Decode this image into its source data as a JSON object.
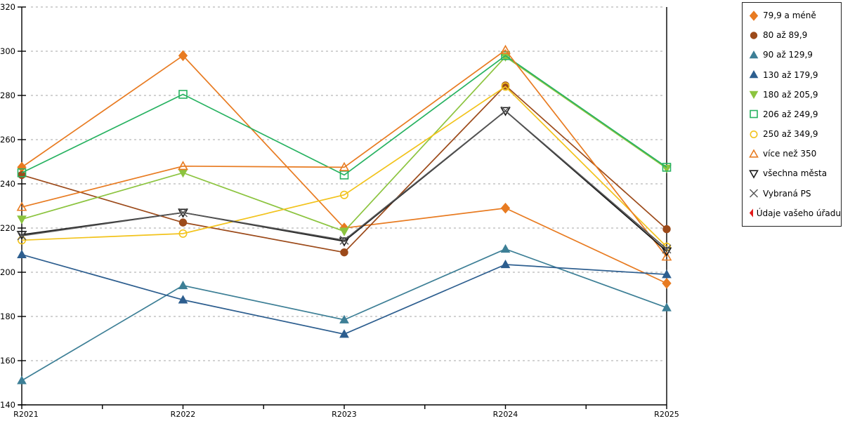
{
  "chart_data": {
    "type": "line",
    "title": "",
    "xlabel": "",
    "ylabel": "",
    "categories": [
      "R2021",
      "R2022",
      "R2023",
      "R2024",
      "R2025"
    ],
    "ylim": [
      140,
      320
    ],
    "ytick_step": 20,
    "grid": "horizontal-dashed",
    "legend_position": "right",
    "series": [
      {
        "name": "79,9 a méně",
        "color": "#e87b21",
        "marker": "diamond",
        "fill": "filled",
        "values": [
          247.5,
          298,
          220,
          229,
          195
        ]
      },
      {
        "name": "80 až 89,9",
        "color": "#9c4a1a",
        "marker": "circle",
        "fill": "filled",
        "values": [
          244,
          222.5,
          209,
          284.5,
          219.5
        ]
      },
      {
        "name": "90 až 129,9",
        "color": "#3d7f96",
        "marker": "triangle-up",
        "fill": "filled",
        "values": [
          151,
          194,
          178.5,
          210.5,
          184
        ]
      },
      {
        "name": "130 až 179,9",
        "color": "#2d5e8f",
        "marker": "triangle-up",
        "fill": "filled",
        "values": [
          208,
          187.5,
          172,
          203.5,
          199
        ]
      },
      {
        "name": "180 až 205,9",
        "color": "#8cc43f",
        "marker": "triangle-down",
        "fill": "filled",
        "values": [
          224,
          245,
          218.5,
          297.5,
          247
        ]
      },
      {
        "name": "206 až 249,9",
        "color": "#27b261",
        "marker": "square",
        "fill": "open",
        "values": [
          245,
          280.5,
          244,
          298,
          247.5
        ]
      },
      {
        "name": "250 až 349,9",
        "color": "#f2c31c",
        "marker": "circle",
        "fill": "open",
        "values": [
          214.5,
          217.5,
          235,
          284,
          211.5
        ]
      },
      {
        "name": "více než 350",
        "color": "#e87b21",
        "marker": "triangle-up",
        "fill": "open",
        "values": [
          229.5,
          248,
          247.5,
          300.5,
          207
        ]
      },
      {
        "name": "všechna města",
        "color": "#1a1a1a",
        "marker": "triangle-down",
        "fill": "open",
        "values": [
          217,
          227,
          214,
          273,
          209.5
        ]
      },
      {
        "name": "Vybraná PS",
        "color": "#555555",
        "marker": "x",
        "fill": "open",
        "values": [
          216.5,
          227,
          214.5,
          273,
          210.5
        ]
      },
      {
        "name": "Údaje vašeho úřadu",
        "color": "#e31a1a",
        "marker": "diamond",
        "fill": "filled",
        "values": [
          null,
          null,
          null,
          null,
          null
        ]
      }
    ],
    "colors": {
      "grid": "#b8b8b8",
      "axis": "#000000",
      "background": "#ffffff"
    }
  }
}
